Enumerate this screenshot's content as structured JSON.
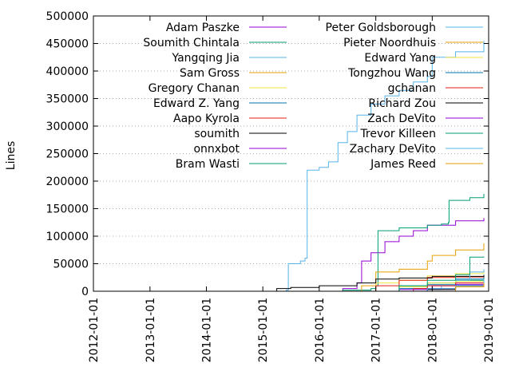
{
  "chart_data": {
    "type": "line",
    "title": "",
    "xlabel": "",
    "ylabel": "Lines",
    "x_ticks": [
      "2012-01-01",
      "2013-01-01",
      "2014-01-01",
      "2015-01-01",
      "2016-01-01",
      "2017-01-01",
      "2018-01-01",
      "2019-01-01"
    ],
    "y_ticks": [
      "0",
      "50000",
      "100000",
      "150000",
      "200000",
      "250000",
      "300000",
      "350000",
      "400000",
      "450000",
      "500000"
    ],
    "xlim": [
      "2012-01-01",
      "2019-01-01"
    ],
    "ylim": [
      0,
      500000
    ],
    "grid": "horizontal-dotted",
    "legend_placement": "top",
    "series": [
      {
        "name": "Adam Paszke",
        "color": "#9400d3",
        "points": [
          [
            "2015-06-01",
            0
          ],
          [
            "2016-06-01",
            5000
          ],
          [
            "2016-09-01",
            15000
          ],
          [
            "2016-10-01",
            55000
          ],
          [
            "2016-12-01",
            70000
          ],
          [
            "2017-03-01",
            90000
          ],
          [
            "2017-06-01",
            100000
          ],
          [
            "2017-09-01",
            110000
          ],
          [
            "2017-12-01",
            120000
          ],
          [
            "2018-06-01",
            128000
          ],
          [
            "2018-12-01",
            133000
          ]
        ]
      },
      {
        "name": "Soumith Chintala",
        "color": "#009e73",
        "points": [
          [
            "2015-06-01",
            0
          ],
          [
            "2016-06-01",
            2000
          ],
          [
            "2016-12-01",
            5000
          ],
          [
            "2017-01-01",
            10000
          ],
          [
            "2017-01-15",
            110000
          ],
          [
            "2017-06-01",
            115000
          ],
          [
            "2017-12-01",
            120000
          ],
          [
            "2018-03-01",
            122000
          ],
          [
            "2018-04-15",
            125000
          ],
          [
            "2018-04-20",
            165000
          ],
          [
            "2018-09-01",
            170000
          ],
          [
            "2018-12-01",
            177000
          ]
        ]
      },
      {
        "name": "Yangqing Jia",
        "color": "#56b4e9",
        "points": [
          [
            "2015-01-01",
            0
          ],
          [
            "2015-06-01",
            2000
          ],
          [
            "2015-06-15",
            50000
          ],
          [
            "2015-09-01",
            55000
          ],
          [
            "2015-10-01",
            60000
          ],
          [
            "2015-10-15",
            220000
          ],
          [
            "2016-01-01",
            225000
          ],
          [
            "2016-03-01",
            235000
          ],
          [
            "2016-05-01",
            270000
          ],
          [
            "2016-07-01",
            290000
          ],
          [
            "2016-09-01",
            320000
          ],
          [
            "2016-12-01",
            340000
          ],
          [
            "2017-03-01",
            355000
          ],
          [
            "2017-06-01",
            365000
          ],
          [
            "2017-09-01",
            380000
          ],
          [
            "2017-12-01",
            390000
          ],
          [
            "2018-01-01",
            425000
          ],
          [
            "2018-06-01",
            435000
          ],
          [
            "2018-12-01",
            455000
          ]
        ]
      },
      {
        "name": "Sam Gross",
        "color": "#e69f00",
        "points": [
          [
            "2016-06-01",
            0
          ],
          [
            "2016-10-01",
            10000
          ],
          [
            "2017-01-01",
            35000
          ],
          [
            "2017-06-01",
            40000
          ],
          [
            "2017-12-01",
            55000
          ],
          [
            "2018-01-01",
            65000
          ],
          [
            "2018-06-01",
            75000
          ],
          [
            "2018-12-01",
            87000
          ]
        ]
      },
      {
        "name": "Gregory Chanan",
        "color": "#f0e442",
        "points": [
          [
            "2016-08-01",
            0
          ],
          [
            "2017-01-01",
            15000
          ],
          [
            "2017-06-01",
            20000
          ],
          [
            "2017-12-01",
            28000
          ],
          [
            "2018-06-01",
            32000
          ],
          [
            "2018-12-01",
            36000
          ]
        ]
      },
      {
        "name": "Edward Z. Yang",
        "color": "#0072b2",
        "points": [
          [
            "2017-01-01",
            0
          ],
          [
            "2017-06-01",
            5000
          ],
          [
            "2017-12-01",
            12000
          ],
          [
            "2018-06-01",
            22000
          ],
          [
            "2018-12-01",
            30000
          ]
        ]
      },
      {
        "name": "Aapo Kyrola",
        "color": "#e51e10",
        "points": [
          [
            "2016-09-01",
            0
          ],
          [
            "2017-01-01",
            10000
          ],
          [
            "2017-06-01",
            20000
          ],
          [
            "2017-12-01",
            25000
          ],
          [
            "2018-06-01",
            26000
          ],
          [
            "2018-12-01",
            27000
          ]
        ]
      },
      {
        "name": "soumith",
        "color": "#000000",
        "points": [
          [
            "2014-12-01",
            0
          ],
          [
            "2015-04-01",
            5000
          ],
          [
            "2015-07-01",
            7000
          ],
          [
            "2016-01-01",
            10000
          ],
          [
            "2016-09-01",
            15000
          ],
          [
            "2017-01-01",
            22000
          ],
          [
            "2017-06-01",
            24000
          ],
          [
            "2018-01-01",
            27000
          ],
          [
            "2018-12-01",
            29000
          ]
        ]
      },
      {
        "name": "onnxbot",
        "color": "#9400d3",
        "points": [
          [
            "2017-08-01",
            0
          ],
          [
            "2017-12-01",
            5000
          ],
          [
            "2018-01-01",
            10000
          ],
          [
            "2018-06-01",
            15000
          ],
          [
            "2018-12-01",
            20000
          ]
        ]
      },
      {
        "name": "Bram Wasti",
        "color": "#009e73",
        "points": [
          [
            "2016-12-01",
            0
          ],
          [
            "2017-06-01",
            10000
          ],
          [
            "2017-12-01",
            15000
          ],
          [
            "2018-06-01",
            20000
          ],
          [
            "2018-12-01",
            24000
          ]
        ]
      },
      {
        "name": "Peter Goldsborough",
        "color": "#56b4e9",
        "points": [
          [
            "2017-07-01",
            0
          ],
          [
            "2017-12-01",
            3000
          ],
          [
            "2018-03-01",
            10000
          ],
          [
            "2018-06-01",
            20000
          ],
          [
            "2018-09-01",
            35000
          ],
          [
            "2018-12-01",
            40000
          ]
        ]
      },
      {
        "name": "Pieter Noordhuis",
        "color": "#e69f00",
        "points": [
          [
            "2017-06-01",
            0
          ],
          [
            "2017-12-01",
            5000
          ],
          [
            "2018-06-01",
            10000
          ],
          [
            "2018-12-01",
            14000
          ]
        ]
      },
      {
        "name": "Edward Yang",
        "color": "#f0e442",
        "points": [
          [
            "2017-01-01",
            0
          ],
          [
            "2017-06-01",
            8000
          ],
          [
            "2017-12-01",
            15000
          ],
          [
            "2018-06-01",
            18000
          ],
          [
            "2018-12-01",
            20000
          ]
        ]
      },
      {
        "name": "Tongzhou Wang",
        "color": "#0072b2",
        "points": [
          [
            "2017-06-01",
            0
          ],
          [
            "2017-12-01",
            5000
          ],
          [
            "2018-06-01",
            12000
          ],
          [
            "2018-12-01",
            20000
          ]
        ]
      },
      {
        "name": "gchanan",
        "color": "#e51e10",
        "points": [
          [
            "2017-06-01",
            0
          ],
          [
            "2017-09-01",
            5000
          ],
          [
            "2017-12-01",
            10000
          ],
          [
            "2018-06-01",
            15000
          ],
          [
            "2018-12-01",
            18000
          ]
        ]
      },
      {
        "name": "Richard Zou",
        "color": "#000000",
        "points": [
          [
            "2017-06-01",
            0
          ],
          [
            "2017-12-01",
            3000
          ],
          [
            "2018-06-01",
            10000
          ],
          [
            "2018-12-01",
            16000
          ]
        ]
      },
      {
        "name": "Zach DeVito",
        "color": "#9400d3",
        "points": [
          [
            "2016-12-01",
            0
          ],
          [
            "2017-06-01",
            3000
          ],
          [
            "2017-12-01",
            5000
          ],
          [
            "2018-06-01",
            12000
          ],
          [
            "2018-12-01",
            20000
          ]
        ]
      },
      {
        "name": "Trevor Killeen",
        "color": "#009e73",
        "points": [
          [
            "2017-01-01",
            0
          ],
          [
            "2017-06-01",
            10000
          ],
          [
            "2017-12-01",
            20000
          ],
          [
            "2018-06-01",
            30000
          ],
          [
            "2018-09-01",
            62000
          ],
          [
            "2018-12-01",
            63000
          ]
        ]
      },
      {
        "name": "Zachary DeVito",
        "color": "#56b4e9",
        "points": [
          [
            "2017-06-01",
            0
          ],
          [
            "2017-12-01",
            5000
          ],
          [
            "2018-06-01",
            10000
          ],
          [
            "2018-12-01",
            22000
          ]
        ]
      },
      {
        "name": "James Reed",
        "color": "#e69f00",
        "points": [
          [
            "2017-12-01",
            0
          ],
          [
            "2018-06-01",
            8000
          ],
          [
            "2018-12-01",
            15000
          ]
        ]
      }
    ]
  }
}
